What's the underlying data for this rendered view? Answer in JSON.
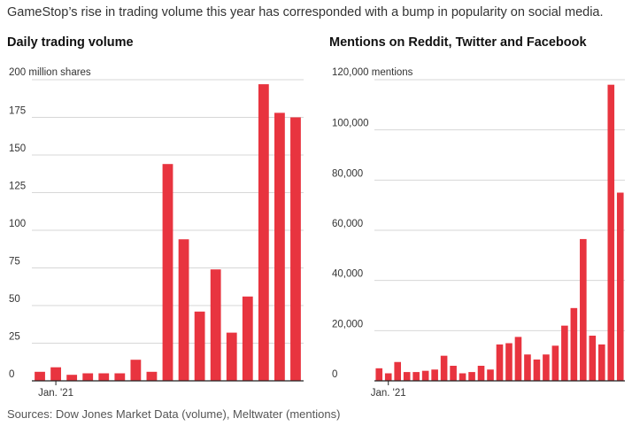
{
  "caption": "GameStop’s rise in trading volume this year has corresponded with a bump in popularity on social media.",
  "source": "Sources: Dow Jones Market Data (volume), Meltwater (mentions)",
  "colors": {
    "bar": "#e8343f",
    "grid": "#d7d7d7",
    "axis": "#222222"
  },
  "chart_data": [
    {
      "type": "bar",
      "title": "Daily trading volume",
      "ylabel": "",
      "yunit": "million shares",
      "ylim": [
        0,
        200
      ],
      "yticks": [
        0,
        25,
        50,
        75,
        100,
        125,
        150,
        175,
        200
      ],
      "ytick_labels": [
        "0",
        "25",
        "50",
        "75",
        "100",
        "125",
        "150",
        "175",
        "200 million shares"
      ],
      "x_label": "Jan. '21",
      "x_label_index": 1,
      "values": [
        6,
        9,
        4,
        5,
        5,
        5,
        14,
        6,
        144,
        94,
        46,
        74,
        32,
        56,
        197,
        178,
        175
      ]
    },
    {
      "type": "bar",
      "title": "Mentions on Reddit, Twitter and Facebook",
      "ylabel": "",
      "yunit": "mentions",
      "ylim": [
        0,
        120000
      ],
      "yticks": [
        0,
        20000,
        40000,
        60000,
        80000,
        100000,
        120000
      ],
      "ytick_labels": [
        "0",
        "20,000",
        "40,000",
        "60,000",
        "80,000",
        "100,000",
        "120,000 mentions"
      ],
      "x_label": "Jan. '21",
      "x_label_index": 1,
      "values": [
        5000,
        3000,
        7500,
        3500,
        3500,
        4000,
        4500,
        10000,
        6000,
        3000,
        3500,
        6000,
        4500,
        14500,
        15000,
        17500,
        10500,
        8500,
        10500,
        14000,
        22000,
        29000,
        56500,
        18000,
        14500,
        118000,
        75000
      ]
    }
  ]
}
